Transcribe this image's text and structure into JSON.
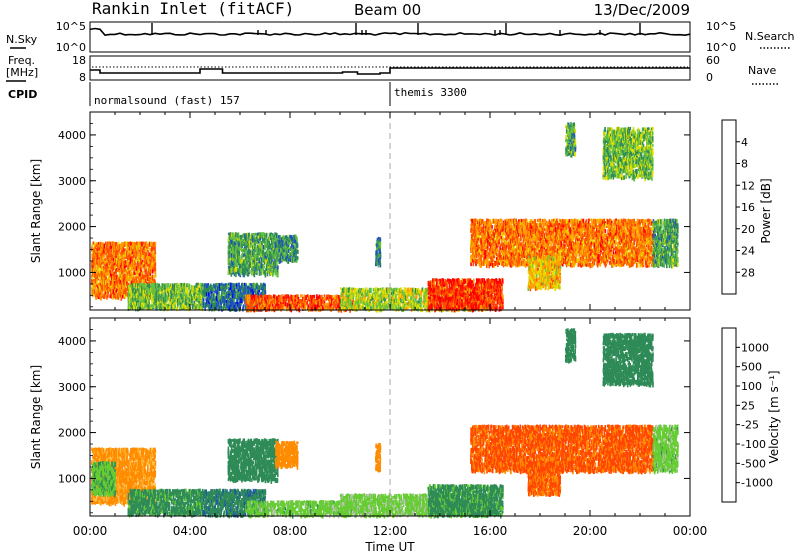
{
  "header": {
    "station": "Rankin Inlet (fitACF)",
    "beam": "Beam 00",
    "date": "13/Dec/2009"
  },
  "noise_panel": {
    "left_label": "N.Sky",
    "right_label": "N.Search",
    "left_ticks": [
      "10^5",
      "10^0"
    ],
    "right_ticks": [
      "10^5",
      "10^0"
    ]
  },
  "freq_panel": {
    "left_label_1": "Freq.",
    "left_label_2": "[MHz]",
    "right_label": "Nave",
    "left_ticks": [
      "18",
      "8"
    ],
    "right_ticks": [
      "60",
      "0"
    ]
  },
  "cpid": {
    "label": "CPID",
    "segments": [
      {
        "name": "normalsound (fast) 157",
        "start_hour": 0
      },
      {
        "name": "themis 3300",
        "start_hour": 12
      }
    ]
  },
  "xaxis": {
    "label": "Time UT",
    "ticks": [
      "00:00",
      "04:00",
      "08:00",
      "12:00",
      "16:00",
      "20:00",
      "00:00"
    ],
    "range_hours": [
      0,
      24
    ]
  },
  "chart_data": [
    {
      "type": "heatmap",
      "panel": "power",
      "ylabel": "Slant Range [km]",
      "ylim": [
        180,
        4500
      ],
      "yticks": [
        "1000",
        "2000",
        "3000",
        "4000"
      ],
      "colorbar_label": "Power [dB]",
      "colorbar_ticks": [
        "4",
        "8",
        "12",
        "16",
        "20",
        "24",
        "28"
      ],
      "colorbar_colors": [
        "#0000ff",
        "#2050c0",
        "#2e8b57",
        "#66c040",
        "#e0e000",
        "#ffa000",
        "#ff5000",
        "#ff0000"
      ],
      "clusters": [
        {
          "t0": 0.0,
          "t1": 2.6,
          "r0": 500,
          "r1": 1700,
          "value": 24
        },
        {
          "t0": 1.5,
          "t1": 4.5,
          "r0": 250,
          "r1": 800,
          "value": 14
        },
        {
          "t0": 4.5,
          "t1": 7.0,
          "r0": 200,
          "r1": 800,
          "value": 8
        },
        {
          "t0": 6.2,
          "t1": 10.5,
          "r0": 190,
          "r1": 550,
          "value": 26
        },
        {
          "t0": 5.5,
          "t1": 7.5,
          "r0": 1000,
          "r1": 1900,
          "value": 12
        },
        {
          "t0": 7.4,
          "t1": 8.3,
          "r0": 1300,
          "r1": 1850,
          "value": 10
        },
        {
          "t0": 10.0,
          "t1": 16.0,
          "r0": 190,
          "r1": 700,
          "value": 16
        },
        {
          "t0": 11.4,
          "t1": 11.6,
          "r0": 1200,
          "r1": 1800,
          "value": 10
        },
        {
          "t0": 13.5,
          "t1": 16.5,
          "r0": 200,
          "r1": 900,
          "value": 28
        },
        {
          "t0": 15.2,
          "t1": 22.5,
          "r0": 1200,
          "r1": 2200,
          "value": 24
        },
        {
          "t0": 17.5,
          "t1": 18.8,
          "r0": 700,
          "r1": 1400,
          "value": 20
        },
        {
          "t0": 19.0,
          "t1": 19.4,
          "r0": 3600,
          "r1": 4300,
          "value": 12
        },
        {
          "t0": 20.5,
          "t1": 22.5,
          "r0": 3100,
          "r1": 4200,
          "value": 14
        },
        {
          "t0": 22.5,
          "t1": 23.5,
          "r0": 1200,
          "r1": 2200,
          "value": 12
        }
      ]
    },
    {
      "type": "heatmap",
      "panel": "velocity",
      "ylabel": "Slant Range [km]",
      "ylim": [
        180,
        4500
      ],
      "yticks": [
        "1000",
        "2000",
        "3000",
        "4000"
      ],
      "colorbar_label": "Velocity [m s⁻¹]",
      "colorbar_ticks": [
        "1000",
        "500",
        "100",
        "25",
        "-25",
        "-100",
        "-500",
        "-1000"
      ],
      "colorbar_colors": [
        "#0000dd",
        "#1f5a9e",
        "#2e8b57",
        "#66cc33",
        "#c0c0c0",
        "#ffc040",
        "#ff8c00",
        "#ff4500",
        "#ff0000"
      ],
      "clusters": [
        {
          "t0": 0.0,
          "t1": 2.6,
          "r0": 500,
          "r1": 1700,
          "value": -150
        },
        {
          "t0": 0.0,
          "t1": 1.0,
          "r0": 700,
          "r1": 1400,
          "value": 80
        },
        {
          "t0": 1.5,
          "t1": 4.5,
          "r0": 250,
          "r1": 800,
          "value": 150
        },
        {
          "t0": 4.5,
          "t1": 7.0,
          "r0": 200,
          "r1": 800,
          "value": 400
        },
        {
          "t0": 6.2,
          "t1": 10.5,
          "r0": 190,
          "r1": 550,
          "value": 60
        },
        {
          "t0": 5.5,
          "t1": 7.5,
          "r0": 1000,
          "r1": 1900,
          "value": 200
        },
        {
          "t0": 7.4,
          "t1": 8.3,
          "r0": 1300,
          "r1": 1850,
          "value": -200
        },
        {
          "t0": 10.0,
          "t1": 16.0,
          "r0": 190,
          "r1": 700,
          "value": 50
        },
        {
          "t0": 11.4,
          "t1": 11.6,
          "r0": 1200,
          "r1": 1800,
          "value": -200
        },
        {
          "t0": 13.5,
          "t1": 16.5,
          "r0": 200,
          "r1": 900,
          "value": 150
        },
        {
          "t0": 15.2,
          "t1": 22.5,
          "r0": 1200,
          "r1": 2200,
          "value": -600
        },
        {
          "t0": 17.5,
          "t1": 18.8,
          "r0": 700,
          "r1": 1400,
          "value": -600
        },
        {
          "t0": 19.0,
          "t1": 19.4,
          "r0": 3600,
          "r1": 4300,
          "value": 200
        },
        {
          "t0": 20.5,
          "t1": 22.5,
          "r0": 3100,
          "r1": 4200,
          "value": 300
        },
        {
          "t0": 22.5,
          "t1": 23.5,
          "r0": 1200,
          "r1": 2200,
          "value": 60
        }
      ]
    }
  ]
}
